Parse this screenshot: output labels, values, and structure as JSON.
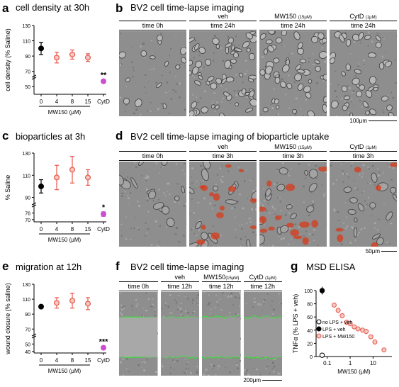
{
  "panels": {
    "a": {
      "label": "a",
      "title": "cell density at 30h"
    },
    "b": {
      "label": "b",
      "title": "BV2 cell time-lapse imaging"
    },
    "c": {
      "label": "c",
      "title": "bioparticles at 3h"
    },
    "d": {
      "label": "d",
      "title": "BV2 cell time-lapse imaging of bioparticle uptake"
    },
    "e": {
      "label": "e",
      "title": "migration at 12h"
    },
    "f": {
      "label": "f",
      "title": "BV2 cell time-lapse imaging"
    },
    "g": {
      "label": "g",
      "title": "MSD ELISA"
    }
  },
  "panel_b": {
    "columns": [
      {
        "group": "",
        "group_sub": "",
        "time": "time 0h"
      },
      {
        "group": "veh",
        "group_sub": "",
        "time": "time 24h"
      },
      {
        "group": "MW150 ",
        "group_sub": "(15μM)",
        "time": "time 24h"
      },
      {
        "group": "CytD ",
        "group_sub": "(1μM)",
        "time": "time 24h"
      }
    ],
    "scalebar": "100μm"
  },
  "panel_d": {
    "columns": [
      {
        "group": "",
        "group_sub": "",
        "time": "time 0h"
      },
      {
        "group": "veh",
        "group_sub": "",
        "time": "time 3h"
      },
      {
        "group": "MW150 ",
        "group_sub": "(15μM)",
        "time": "time 3h"
      },
      {
        "group": "CytD ",
        "group_sub": "(1μM)",
        "time": "time 3h"
      }
    ],
    "scalebar": "50μm"
  },
  "panel_f": {
    "columns": [
      {
        "group": "",
        "group_sub": "",
        "time": "time 0h"
      },
      {
        "group": "veh",
        "group_sub": "",
        "time": "time 12h"
      },
      {
        "group": "MW150",
        "group_sub": "(15μM)",
        "time": "time 12h"
      },
      {
        "group": "CytD ",
        "group_sub": "(1μM)",
        "time": "time 12h"
      }
    ],
    "scalebar": "200μm"
  },
  "colors": {
    "black": "#000000",
    "red": "#e8564b",
    "pink_fill": "#f2c8c0",
    "magenta": "#c94fd0",
    "green": "#3ee23e",
    "reddye": "#d83a1a"
  },
  "chart_data": [
    {
      "id": "a",
      "type": "scatter",
      "ylabel": "cell density (% Saline)",
      "xlabel": "MW150 (μM)",
      "categories": [
        "0",
        "4",
        "8",
        "15",
        "CytD"
      ],
      "yticks": [
        50,
        70,
        90,
        110,
        130
      ],
      "ylim": [
        40,
        130
      ],
      "series": [
        {
          "values": [
            100,
            88,
            92,
            88,
            57
          ],
          "errors": [
            8,
            7,
            6,
            5,
            2
          ]
        }
      ],
      "colors": [
        "black",
        "red",
        "red",
        "red",
        "magenta"
      ],
      "annotations": [
        {
          "category": "CytD",
          "text": "**"
        }
      ]
    },
    {
      "id": "c",
      "type": "scatter",
      "ylabel": "% Saline",
      "xlabel": "MW150 (μM)",
      "categories": [
        "0",
        "4",
        "8",
        "15",
        "CytD"
      ],
      "yticks": [
        70,
        76,
        90,
        110,
        130
      ],
      "ylim": [
        68,
        130
      ],
      "series": [
        {
          "values": [
            100,
            108,
            115,
            108,
            75
          ],
          "errors": [
            6,
            11,
            12,
            7,
            2
          ]
        }
      ],
      "colors": [
        "black",
        "red",
        "red",
        "red",
        "magenta"
      ],
      "annotations": [
        {
          "category": "CytD",
          "text": "*"
        }
      ]
    },
    {
      "id": "e",
      "type": "scatter",
      "ylabel": "wound closure (% saline)",
      "xlabel": "MW150 (μM)",
      "categories": [
        "0",
        "4",
        "8",
        "15",
        "CytD"
      ],
      "yticks": [
        40,
        50,
        70,
        90,
        110,
        130
      ],
      "ylim": [
        38,
        130
      ],
      "series": [
        {
          "values": [
            100,
            105,
            108,
            104,
            45
          ],
          "errors": [
            2,
            7,
            10,
            8,
            2
          ]
        }
      ],
      "colors": [
        "black",
        "red",
        "red",
        "red",
        "magenta"
      ],
      "annotations": [
        {
          "category": "CytD",
          "text": "***"
        }
      ]
    },
    {
      "id": "g",
      "type": "scatter",
      "ylabel": "TNFα (% LPS + veh)",
      "xlabel": "MW150 (μM)",
      "xscale": "log",
      "xticks": [
        0.1,
        1,
        10
      ],
      "xticklabels": [
        "0.1",
        "1",
        "10"
      ],
      "yticks": [
        0,
        20,
        40,
        60,
        80,
        100
      ],
      "ylim": [
        0,
        100
      ],
      "legend": [
        "no LPS + veh",
        "LPS + veh",
        "LPS + MW150"
      ],
      "series": [
        {
          "name": "no LPS + veh",
          "x": [
            0.06
          ],
          "values": [
            2
          ],
          "errors": [
            1
          ]
        },
        {
          "name": "LPS + veh",
          "x": [
            0.06
          ],
          "values": [
            100
          ],
          "errors": [
            6
          ]
        },
        {
          "name": "LPS + MW150",
          "x": [
            0.2,
            0.3,
            0.45,
            0.7,
            1,
            1.5,
            2.2,
            3.5,
            5,
            8,
            12,
            30
          ],
          "values": [
            78,
            70,
            62,
            52,
            50,
            45,
            42,
            40,
            38,
            30,
            22,
            10
          ],
          "errors": [
            4,
            4,
            4,
            4,
            4,
            3,
            3,
            3,
            4,
            3,
            3,
            2
          ]
        }
      ]
    }
  ]
}
